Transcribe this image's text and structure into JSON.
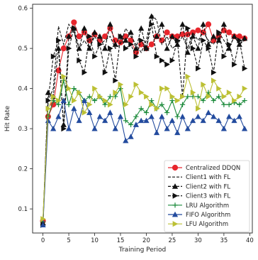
{
  "chart_data": {
    "type": "line",
    "title": "",
    "xlabel": "Training Period",
    "ylabel": "Hit Rate",
    "xlim": [
      -2,
      40.5
    ],
    "ylim": [
      0.04,
      0.61
    ],
    "xticks": [
      0,
      5,
      10,
      15,
      20,
      25,
      30,
      35,
      40
    ],
    "yticks": [
      0.1,
      0.2,
      0.3,
      0.4,
      0.5,
      0.6
    ],
    "xtick_labels": [
      "0",
      "5",
      "10",
      "15",
      "20",
      "25",
      "30",
      "35",
      "40"
    ],
    "ytick_labels": [
      "0.1",
      "0.2",
      "0.3",
      "0.4",
      "0.5",
      "0.6"
    ],
    "grid": false,
    "legend_position": "lower-right",
    "x": [
      0,
      1,
      2,
      3,
      4,
      5,
      6,
      7,
      8,
      9,
      10,
      11,
      12,
      13,
      14,
      15,
      16,
      17,
      18,
      19,
      20,
      21,
      22,
      23,
      24,
      25,
      26,
      27,
      28,
      29,
      30,
      31,
      32,
      33,
      34,
      35,
      36,
      37,
      38,
      39
    ],
    "series": [
      {
        "name": "Centralized DDQN",
        "color": "#e8262d",
        "dash": "",
        "marker": "circle",
        "values": [
          0.07,
          0.33,
          0.36,
          0.445,
          0.5,
          0.53,
          0.565,
          0.53,
          0.54,
          0.52,
          0.535,
          0.52,
          0.53,
          0.55,
          0.52,
          0.515,
          0.53,
          0.52,
          0.49,
          0.51,
          0.5,
          0.51,
          0.53,
          0.52,
          0.54,
          0.53,
          0.53,
          0.535,
          0.535,
          0.54,
          0.545,
          0.54,
          0.56,
          0.52,
          0.53,
          0.545,
          0.54,
          0.53,
          0.53,
          0.525
        ]
      },
      {
        "name": "Client1 with FL",
        "color": "#111111",
        "dash": "4,2",
        "marker": "none",
        "values": [
          0.07,
          0.37,
          0.4,
          0.555,
          0.51,
          0.56,
          0.54,
          0.5,
          0.52,
          0.5,
          0.53,
          0.51,
          0.52,
          0.53,
          0.5,
          0.51,
          0.55,
          0.53,
          0.51,
          0.49,
          0.52,
          0.585,
          0.57,
          0.51,
          0.53,
          0.5,
          0.51,
          0.53,
          0.5,
          0.54,
          0.52,
          0.54,
          0.52,
          0.51,
          0.54,
          0.52,
          0.5,
          0.53,
          0.51,
          0.52
        ]
      },
      {
        "name": "Client2 with FL",
        "color": "#111111",
        "dash": "4,2",
        "marker": "triangle-up",
        "values": [
          0.065,
          0.39,
          0.38,
          0.5,
          0.31,
          0.53,
          0.55,
          0.5,
          0.55,
          0.5,
          0.54,
          0.53,
          0.5,
          0.56,
          0.51,
          0.53,
          0.52,
          0.54,
          0.5,
          0.55,
          0.5,
          0.58,
          0.53,
          0.56,
          0.5,
          0.53,
          0.51,
          0.56,
          0.49,
          0.53,
          0.5,
          0.56,
          0.51,
          0.53,
          0.52,
          0.56,
          0.5,
          0.53,
          0.51,
          0.525
        ]
      },
      {
        "name": "Client3 with FL",
        "color": "#111111",
        "dash": "4,2",
        "marker": "triangle-right",
        "values": [
          0.06,
          0.37,
          0.48,
          0.52,
          0.3,
          0.5,
          0.55,
          0.47,
          0.44,
          0.53,
          0.48,
          0.51,
          0.44,
          0.5,
          0.42,
          0.53,
          0.5,
          0.51,
          0.48,
          0.52,
          0.5,
          0.56,
          0.48,
          0.47,
          0.46,
          0.47,
          0.52,
          0.38,
          0.55,
          0.5,
          0.45,
          0.52,
          0.5,
          0.44,
          0.54,
          0.48,
          0.51,
          0.46,
          0.52,
          0.45
        ]
      },
      {
        "name": "LRU Algorithm",
        "color": "#1a8a3a",
        "dash": "",
        "marker": "plus",
        "values": [
          0.068,
          0.33,
          0.37,
          0.36,
          0.42,
          0.36,
          0.4,
          0.39,
          0.37,
          0.38,
          0.37,
          0.38,
          0.36,
          0.38,
          0.38,
          0.4,
          0.32,
          0.31,
          0.33,
          0.35,
          0.34,
          0.37,
          0.35,
          0.36,
          0.34,
          0.37,
          0.33,
          0.36,
          0.38,
          0.38,
          0.38,
          0.37,
          0.39,
          0.37,
          0.38,
          0.36,
          0.36,
          0.365,
          0.36,
          0.37
        ]
      },
      {
        "name": "FIFO Algorithm",
        "color": "#234b9e",
        "dash": "",
        "marker": "triangle-up",
        "values": [
          0.06,
          0.32,
          0.3,
          0.33,
          0.37,
          0.3,
          0.35,
          0.32,
          0.37,
          0.34,
          0.3,
          0.33,
          0.32,
          0.34,
          0.3,
          0.33,
          0.27,
          0.28,
          0.31,
          0.32,
          0.32,
          0.33,
          0.29,
          0.33,
          0.3,
          0.32,
          0.29,
          0.33,
          0.3,
          0.32,
          0.33,
          0.32,
          0.34,
          0.33,
          0.32,
          0.3,
          0.33,
          0.32,
          0.33,
          0.3
        ]
      },
      {
        "name": "LFU Algorithm",
        "color": "#bcc034",
        "dash": "",
        "marker": "triangle-right",
        "values": [
          0.075,
          0.35,
          0.38,
          0.37,
          0.43,
          0.4,
          0.37,
          0.39,
          0.34,
          0.36,
          0.4,
          0.38,
          0.37,
          0.36,
          0.39,
          0.41,
          0.36,
          0.38,
          0.41,
          0.39,
          0.38,
          0.36,
          0.35,
          0.4,
          0.4,
          0.38,
          0.37,
          0.38,
          0.43,
          0.39,
          0.35,
          0.41,
          0.38,
          0.42,
          0.4,
          0.38,
          0.39,
          0.37,
          0.38,
          0.4
        ]
      }
    ]
  }
}
